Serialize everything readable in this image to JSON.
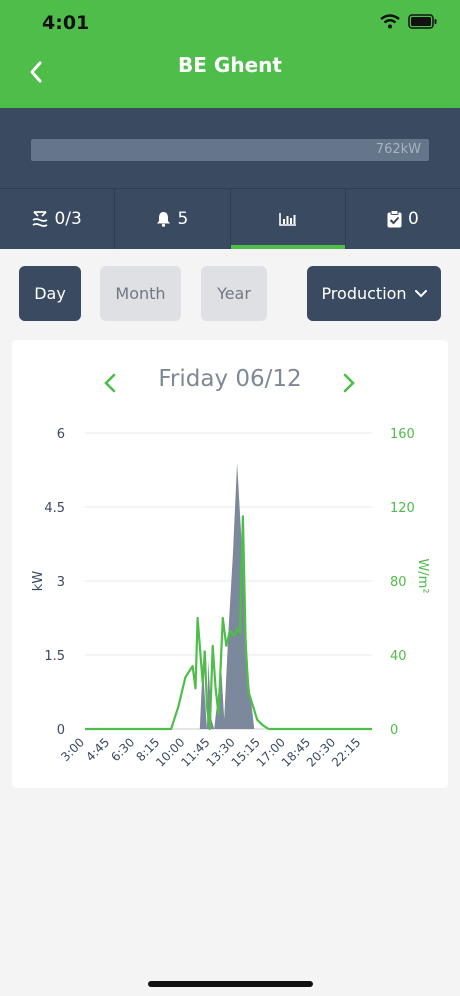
{
  "status_bar": {
    "time": "4:01"
  },
  "header": {
    "title": "BE Ghent"
  },
  "summary": {
    "capacity_label": "762kW"
  },
  "tabs": [
    {
      "name": "strings",
      "label": "0/3"
    },
    {
      "name": "alarms",
      "label": "5"
    },
    {
      "name": "chart",
      "label": ""
    },
    {
      "name": "tasks",
      "label": "0"
    }
  ],
  "period": {
    "day_label": "Day",
    "month_label": "Month",
    "year_label": "Year",
    "metric_label": "Production"
  },
  "chart_nav": {
    "date_label": "Friday 06/12"
  },
  "colors": {
    "accent": "#4fbd4a",
    "navy": "#3a4a61",
    "area": "#7c889b"
  },
  "chart_data": {
    "type": "area",
    "xlabel": "",
    "ylabel_left": "kW",
    "ylabel_right": "W/m²",
    "x_ticks": [
      "3:00",
      "4:45",
      "6:30",
      "8:15",
      "10:00",
      "11:45",
      "13:30",
      "15:15",
      "17:00",
      "18:45",
      "20:30",
      "22:15"
    ],
    "y_left_ticks": [
      "0",
      "1.5",
      "3",
      "4.5",
      "6"
    ],
    "y_right_ticks": [
      "0",
      "40",
      "80",
      "120",
      "160"
    ],
    "ylim_left": [
      0,
      6
    ],
    "ylim_right": [
      0,
      160
    ],
    "grid": true,
    "series": [
      {
        "axis": "left",
        "kind": "area",
        "x_hours": [
          3.0,
          11.0,
          11.2,
          11.5,
          11.6,
          11.8,
          12.0,
          12.2,
          12.5,
          12.7,
          13.0,
          13.3,
          13.6,
          14.0,
          14.4,
          14.8,
          15.2,
          23.0
        ],
        "values": [
          0,
          0,
          1.3,
          0,
          1.4,
          0.2,
          0,
          0.5,
          1.2,
          0.2,
          2.0,
          3.5,
          5.4,
          3.3,
          1.0,
          0,
          0,
          0
        ]
      },
      {
        "axis": "right",
        "kind": "line",
        "x_hours": [
          3.0,
          9.0,
          9.5,
          10.0,
          10.5,
          10.7,
          10.85,
          11.0,
          11.2,
          11.35,
          11.5,
          11.7,
          11.9,
          12.1,
          12.3,
          12.6,
          12.85,
          13.1,
          13.4,
          13.6,
          13.8,
          14.0,
          14.2,
          14.4,
          14.6,
          15.0,
          15.4,
          15.8,
          16.2,
          23.0
        ],
        "values": [
          0,
          0,
          12,
          28,
          34,
          22,
          60,
          45,
          25,
          42,
          12,
          0,
          45,
          22,
          8,
          60,
          45,
          53,
          50,
          54,
          52,
          115,
          45,
          20,
          15,
          5,
          2,
          0,
          0,
          0
        ]
      }
    ]
  }
}
